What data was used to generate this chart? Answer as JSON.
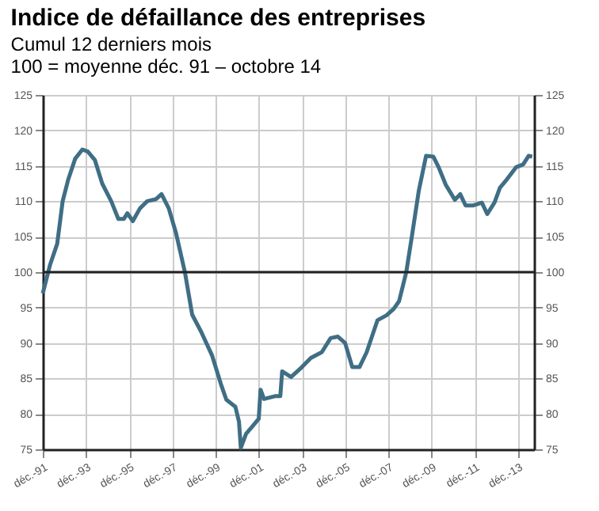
{
  "chart_data": {
    "type": "line",
    "title": "Indice de défaillance des entreprises",
    "subtitle": "Cumul 12 derniers mois\n100 = moyenne déc. 91 – octobre 14",
    "x": [
      "1991-12",
      "1992-04",
      "1992-08",
      "1992-11",
      "1993-02",
      "1993-06",
      "1993-10",
      "1994-01",
      "1994-05",
      "1994-09",
      "1995-02",
      "1995-06",
      "1995-09",
      "1995-11",
      "1996-02",
      "1996-06",
      "1996-10",
      "1997-03",
      "1997-06",
      "1997-10",
      "1998-02",
      "1998-07",
      "1998-11",
      "1999-04",
      "1999-10",
      "2000-03",
      "2000-06",
      "2000-11",
      "2001-01",
      "2001-02",
      "2001-05",
      "2001-09",
      "2001-12",
      "2002-01",
      "2002-03",
      "2002-09",
      "2002-12",
      "2003-01",
      "2003-06",
      "2003-12",
      "2004-05",
      "2004-11",
      "2005-04",
      "2005-08",
      "2005-12",
      "2006-04",
      "2006-08",
      "2006-12",
      "2007-06",
      "2007-11",
      "2008-03",
      "2008-06",
      "2008-10",
      "2009-01",
      "2009-05",
      "2009-09",
      "2010-01",
      "2010-04",
      "2010-08",
      "2011-01",
      "2011-04",
      "2011-07",
      "2011-11",
      "2012-04",
      "2012-07",
      "2012-11",
      "2013-02",
      "2013-06",
      "2013-11",
      "2014-03",
      "2014-06",
      "2014-08"
    ],
    "series": [
      {
        "color": "#3f6e85",
        "values": [
          97,
          101,
          104,
          110,
          113,
          116,
          117.3,
          117,
          115.8,
          112.5,
          110,
          107.5,
          107.5,
          108.3,
          107.2,
          109,
          110,
          110.3,
          111,
          109,
          105.5,
          100,
          94,
          91.6,
          88.3,
          84.2,
          82,
          81,
          78.9,
          75.2,
          77.2,
          78.4,
          79.3,
          83.4,
          82.1,
          82.5,
          82.5,
          86,
          85.2,
          86.6,
          87.9,
          88.7,
          90.7,
          90.9,
          90,
          86.6,
          86.6,
          88.7,
          93.2,
          93.9,
          94.8,
          95.9,
          100,
          104.9,
          111.5,
          116.4,
          116.3,
          114.8,
          112.3,
          110.2,
          111,
          109.4,
          109.4,
          109.8,
          108.2,
          109.8,
          111.9,
          113.1,
          114.8,
          115.2,
          116.4,
          116.3
        ]
      }
    ],
    "xlim": [
      "1991-12",
      "2014-09"
    ],
    "xticks": [
      {
        "value": "1991-12",
        "label": "déc.-91"
      },
      {
        "value": "1993-12",
        "label": "déc.-93"
      },
      {
        "value": "1995-12",
        "label": "déc.-95"
      },
      {
        "value": "1997-12",
        "label": "déc.-97"
      },
      {
        "value": "1999-12",
        "label": "déc.-99"
      },
      {
        "value": "2001-12",
        "label": "déc.-01"
      },
      {
        "value": "2003-12",
        "label": "déc.-03"
      },
      {
        "value": "2005-12",
        "label": "déc.-05"
      },
      {
        "value": "2007-12",
        "label": "déc.-07"
      },
      {
        "value": "2009-12",
        "label": "déc.-09"
      },
      {
        "value": "2011-12",
        "label": "déc.-11"
      },
      {
        "value": "2013-12",
        "label": "déc.-13"
      }
    ],
    "ylim": [
      75,
      125
    ],
    "yticks": [
      75,
      80,
      85,
      90,
      95,
      100,
      105,
      110,
      115,
      120,
      125
    ],
    "y2lim": [
      75,
      125
    ],
    "y2ticks": [
      75,
      80,
      85,
      90,
      95,
      100,
      105,
      110,
      115,
      120,
      125
    ],
    "ref_lines": [
      {
        "axis": "y",
        "value": 100,
        "color": "#222222"
      }
    ],
    "grid": true
  }
}
